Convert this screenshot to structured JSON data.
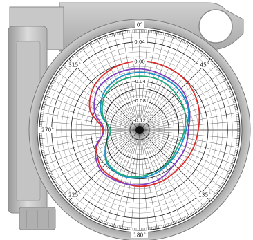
{
  "chart_data": {
    "type": "polar-line",
    "title": "",
    "radial_axis": {
      "ticks": [
        {
          "value": 0.04,
          "label": "0.04"
        },
        {
          "value": 0.0,
          "label": "0.00"
        },
        {
          "value": -0.04,
          "label": "-0.04"
        },
        {
          "value": -0.08,
          "label": "-0.08"
        },
        {
          "value": -0.12,
          "label": "-0.12"
        }
      ],
      "range": [
        -0.14,
        0.065
      ]
    },
    "angle_labels": [
      {
        "deg": 0,
        "label": "0°"
      },
      {
        "deg": 45,
        "label": "45°"
      },
      {
        "deg": 135,
        "label": "135°"
      },
      {
        "deg": 180,
        "label": "180°"
      },
      {
        "deg": 225,
        "label": "225°"
      },
      {
        "deg": 270,
        "label": "270°"
      },
      {
        "deg": 315,
        "label": "315°"
      }
    ],
    "angles_deg": [
      0,
      22.5,
      45,
      67.5,
      90,
      112.5,
      135,
      157.5,
      180,
      202.5,
      225,
      247.5,
      270,
      292.5,
      315,
      337.5
    ],
    "series": [
      {
        "color": "#dd2a2a",
        "values": [
          0.001,
          0.0,
          -0.002,
          -0.01,
          -0.02,
          -0.025,
          -0.028,
          -0.026,
          -0.025,
          -0.028,
          -0.03,
          -0.045,
          -0.065,
          -0.03,
          -0.01,
          -0.002
        ]
      },
      {
        "color": "#8040c0",
        "values": [
          -0.015,
          -0.018,
          -0.02,
          -0.03,
          -0.04,
          -0.04,
          -0.04,
          -0.032,
          -0.028,
          -0.026,
          -0.026,
          -0.042,
          -0.067,
          -0.04,
          -0.02,
          -0.015
        ]
      },
      {
        "color": "#1890c8",
        "values": [
          -0.022,
          -0.023,
          -0.025,
          -0.032,
          -0.045,
          -0.05,
          -0.05,
          -0.046,
          -0.042,
          -0.04,
          -0.045,
          -0.065,
          -0.08,
          -0.055,
          -0.035,
          -0.025
        ]
      },
      {
        "color": "#20a878",
        "values": [
          -0.03,
          -0.03,
          -0.035,
          -0.04,
          -0.048,
          -0.055,
          -0.052,
          -0.05,
          -0.045,
          -0.042,
          -0.047,
          -0.066,
          -0.08,
          -0.058,
          -0.04,
          -0.032
        ]
      },
      {
        "color": "#222222",
        "values": [
          -0.055,
          -0.055,
          -0.055,
          -0.058,
          -0.06,
          -0.06,
          -0.055,
          -0.05,
          -0.05,
          -0.055,
          -0.06,
          -0.068,
          -0.075,
          -0.065,
          -0.06,
          -0.058
        ]
      }
    ]
  }
}
